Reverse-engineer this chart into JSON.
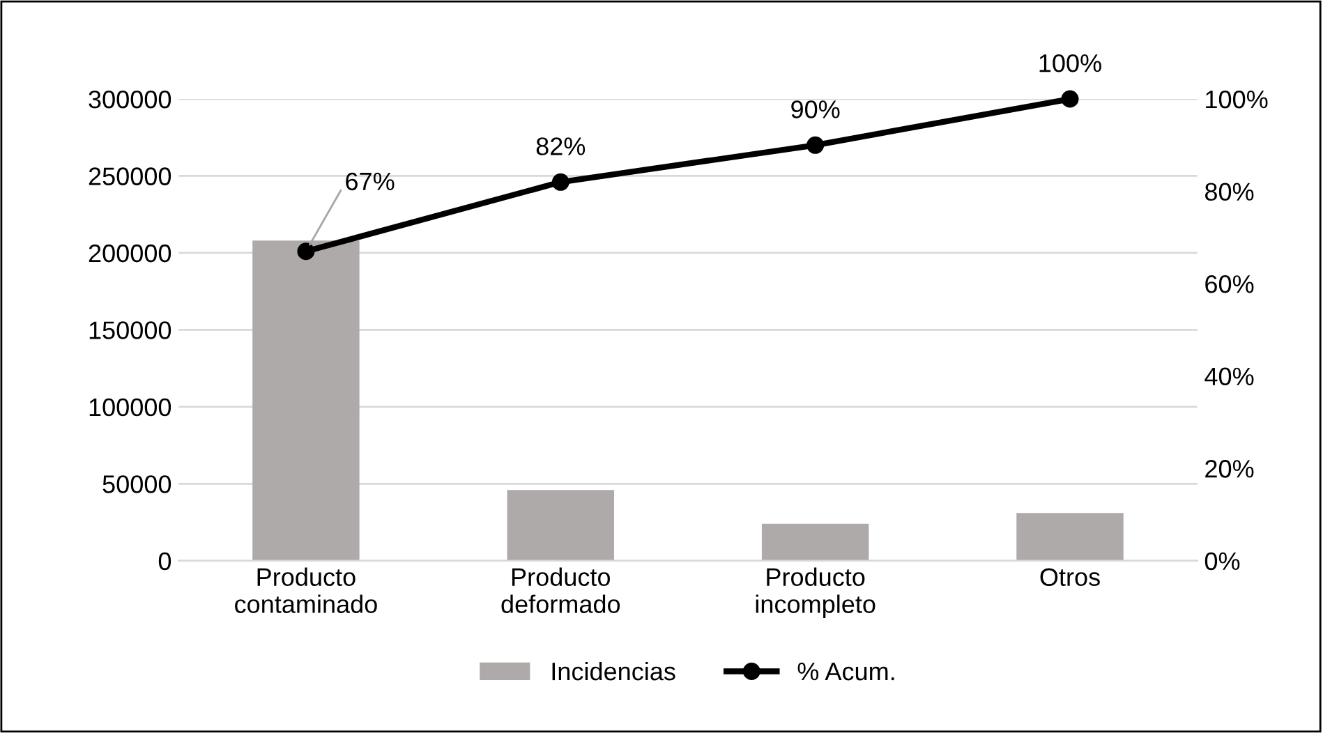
{
  "chart_data": {
    "type": "bar",
    "categories": [
      "Producto\ncontaminado",
      "Producto\ndeformado",
      "Producto\nincompleto",
      "Otros"
    ],
    "series": [
      {
        "name": "Incidencias",
        "color": "#aeaaaa",
        "values": [
          208000,
          46000,
          24000,
          31000
        ]
      },
      {
        "name": "% Acum.",
        "type": "line",
        "axis": "y2",
        "color": "#000000",
        "values": [
          67,
          82,
          90,
          100
        ],
        "value_labels": [
          "67%",
          "82%",
          "90%",
          "100%"
        ],
        "marker": "circle",
        "line_style": "solid"
      }
    ],
    "ylim": [
      0,
      300000
    ],
    "yticks": [
      0,
      50000,
      100000,
      150000,
      200000,
      250000,
      300000
    ],
    "y2lim": [
      0,
      100
    ],
    "y2ticks": [
      {
        "value": 0,
        "label": "0%"
      },
      {
        "value": 20,
        "label": "20%"
      },
      {
        "value": 40,
        "label": "40%"
      },
      {
        "value": 60,
        "label": "60%"
      },
      {
        "value": 80,
        "label": "80%"
      },
      {
        "value": 100,
        "label": "100%"
      }
    ],
    "grid": "y",
    "legend": "bottom"
  }
}
